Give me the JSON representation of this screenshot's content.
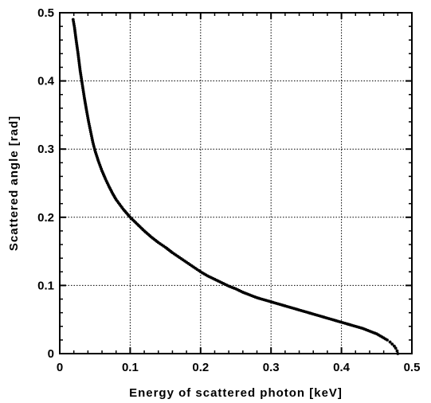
{
  "chart_data": {
    "type": "scatter",
    "title": "",
    "xlabel": "Energy of scattered photon [keV]",
    "ylabel": "Scattered angle [rad]",
    "xlim": [
      0,
      0.5
    ],
    "ylim": [
      0,
      0.5
    ],
    "x_ticks": [
      "0",
      "0.1",
      "0.2",
      "0.3",
      "0.4",
      "0.5"
    ],
    "y_ticks": [
      "0",
      "0.1",
      "0.2",
      "0.3",
      "0.4",
      "0.5"
    ],
    "grid": true,
    "marker_color": "#000000",
    "series": [
      {
        "points": [
          [
            0.48,
            0.0
          ],
          [
            0.479,
            0.004
          ],
          [
            0.477,
            0.008
          ],
          [
            0.475,
            0.011
          ],
          [
            0.472,
            0.014
          ],
          [
            0.469,
            0.017
          ],
          [
            0.465,
            0.02
          ],
          [
            0.46,
            0.023
          ],
          [
            0.455,
            0.026
          ],
          [
            0.45,
            0.029
          ],
          [
            0.445,
            0.031
          ],
          [
            0.44,
            0.033
          ],
          [
            0.43,
            0.037
          ],
          [
            0.42,
            0.04
          ],
          [
            0.41,
            0.043
          ],
          [
            0.4,
            0.046
          ],
          [
            0.39,
            0.049
          ],
          [
            0.38,
            0.052
          ],
          [
            0.37,
            0.055
          ],
          [
            0.36,
            0.058
          ],
          [
            0.35,
            0.061
          ],
          [
            0.34,
            0.064
          ],
          [
            0.33,
            0.067
          ],
          [
            0.32,
            0.07
          ],
          [
            0.31,
            0.073
          ],
          [
            0.3,
            0.076
          ],
          [
            0.29,
            0.079
          ],
          [
            0.28,
            0.082
          ],
          [
            0.27,
            0.086
          ],
          [
            0.26,
            0.09
          ],
          [
            0.25,
            0.095
          ],
          [
            0.24,
            0.099
          ],
          [
            0.23,
            0.104
          ],
          [
            0.22,
            0.109
          ],
          [
            0.21,
            0.114
          ],
          [
            0.2,
            0.12
          ],
          [
            0.19,
            0.127
          ],
          [
            0.18,
            0.134
          ],
          [
            0.17,
            0.141
          ],
          [
            0.16,
            0.148
          ],
          [
            0.15,
            0.156
          ],
          [
            0.14,
            0.163
          ],
          [
            0.13,
            0.171
          ],
          [
            0.12,
            0.18
          ],
          [
            0.11,
            0.19
          ],
          [
            0.1,
            0.2
          ],
          [
            0.095,
            0.206
          ],
          [
            0.09,
            0.212
          ],
          [
            0.085,
            0.219
          ],
          [
            0.08,
            0.226
          ],
          [
            0.075,
            0.235
          ],
          [
            0.07,
            0.245
          ],
          [
            0.065,
            0.256
          ],
          [
            0.06,
            0.268
          ],
          [
            0.055,
            0.282
          ],
          [
            0.05,
            0.298
          ],
          [
            0.047,
            0.31
          ],
          [
            0.044,
            0.325
          ],
          [
            0.041,
            0.34
          ],
          [
            0.038,
            0.357
          ],
          [
            0.035,
            0.375
          ],
          [
            0.032,
            0.395
          ],
          [
            0.029,
            0.415
          ],
          [
            0.026,
            0.44
          ],
          [
            0.023,
            0.462
          ],
          [
            0.021,
            0.478
          ],
          [
            0.019,
            0.49
          ]
        ]
      }
    ]
  }
}
